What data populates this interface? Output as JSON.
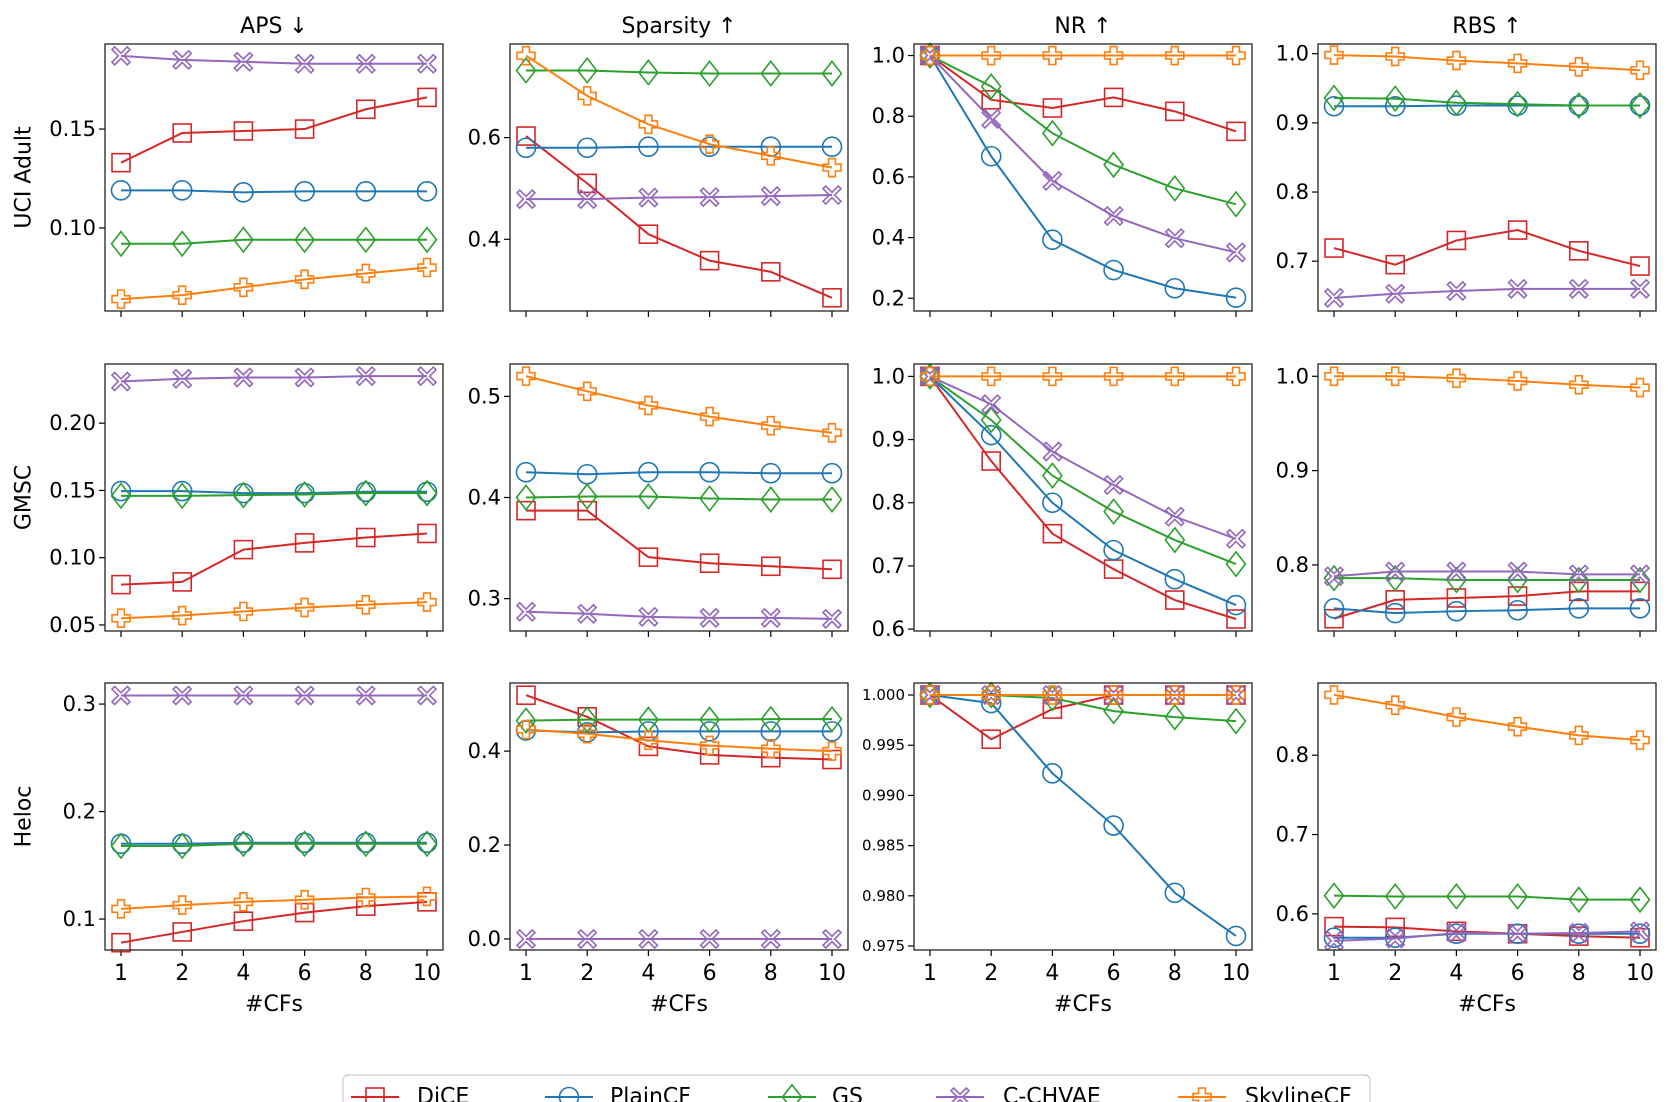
{
  "chart_data": {
    "type": "line",
    "layout": "grid 3 rows x 4 columns",
    "x": [
      "1",
      "2",
      "4",
      "6",
      "8",
      "10"
    ],
    "xlabel": "#CFs",
    "column_titles": [
      "APS ↓",
      "Sparsity ↑",
      "NR ↑",
      "RBS ↑"
    ],
    "row_labels": [
      "UCI Adult",
      "GMSC",
      "Heloc"
    ],
    "legend": {
      "placement": "bottom-center",
      "entries": [
        "DiCE",
        "PlainCF",
        "GS",
        "C-CHVAE",
        "SkylineCF"
      ]
    },
    "series_style": [
      {
        "name": "DiCE",
        "color": "#d62728",
        "marker": "square"
      },
      {
        "name": "PlainCF",
        "color": "#1f77b4",
        "marker": "circle"
      },
      {
        "name": "GS",
        "color": "#2ca02c",
        "marker": "diamond"
      },
      {
        "name": "C-CHVAE",
        "color": "#9467bd",
        "marker": "x"
      },
      {
        "name": "SkylineCF",
        "color": "#ff7f0e",
        "marker": "plus"
      }
    ],
    "grid": false,
    "panels": [
      {
        "row": 0,
        "col": 0,
        "ylim": [
          0.058,
          0.193
        ],
        "yticks": [
          "0.10",
          "0.15"
        ],
        "series": [
          {
            "name": "DiCE",
            "values": [
              0.133,
              0.148,
              0.149,
              0.15,
              0.16,
              0.166
            ]
          },
          {
            "name": "PlainCF",
            "values": [
              0.119,
              0.119,
              0.118,
              0.1185,
              0.1185,
              0.1185
            ]
          },
          {
            "name": "GS",
            "values": [
              0.092,
              0.092,
              0.094,
              0.094,
              0.094,
              0.094
            ]
          },
          {
            "name": "C-CHVAE",
            "values": [
              0.187,
              0.185,
              0.184,
              0.183,
              0.183,
              0.183
            ]
          },
          {
            "name": "SkylineCF",
            "values": [
              0.064,
              0.066,
              0.07,
              0.074,
              0.077,
              0.08
            ]
          }
        ]
      },
      {
        "row": 0,
        "col": 1,
        "ylim": [
          0.259,
          0.784
        ],
        "yticks": [
          "0.4",
          "0.6"
        ],
        "series": [
          {
            "name": "DiCE",
            "values": [
              0.603,
              0.51,
              0.41,
              0.358,
              0.336,
              0.285
            ]
          },
          {
            "name": "PlainCF",
            "values": [
              0.58,
              0.58,
              0.582,
              0.582,
              0.582,
              0.582
            ]
          },
          {
            "name": "GS",
            "values": [
              0.732,
              0.732,
              0.728,
              0.726,
              0.726,
              0.726
            ]
          },
          {
            "name": "C-CHVAE",
            "values": [
              0.479,
              0.479,
              0.482,
              0.483,
              0.485,
              0.487
            ]
          },
          {
            "name": "SkylineCF",
            "values": [
              0.761,
              0.682,
              0.626,
              0.587,
              0.564,
              0.541
            ]
          }
        ]
      },
      {
        "row": 0,
        "col": 2,
        "ylim": [
          0.158,
          1.038
        ],
        "yticks": [
          "0.2",
          "0.4",
          "0.6",
          "0.8",
          "1.0"
        ],
        "series": [
          {
            "name": "DiCE",
            "values": [
              1.0,
              0.854,
              0.827,
              0.862,
              0.816,
              0.75
            ]
          },
          {
            "name": "PlainCF",
            "values": [
              1.0,
              0.668,
              0.393,
              0.293,
              0.233,
              0.202
            ]
          },
          {
            "name": "GS",
            "values": [
              1.0,
              0.898,
              0.744,
              0.64,
              0.562,
              0.51
            ]
          },
          {
            "name": "C-CHVAE",
            "values": [
              1.0,
              0.791,
              0.587,
              0.471,
              0.398,
              0.351
            ]
          },
          {
            "name": "SkylineCF",
            "values": [
              1.0,
              1.0,
              1.0,
              1.0,
              1.0,
              1.0
            ]
          }
        ]
      },
      {
        "row": 0,
        "col": 3,
        "ylim": [
          0.628,
          1.014
        ],
        "yticks": [
          "0.7",
          "0.8",
          "0.9",
          "1.0"
        ],
        "series": [
          {
            "name": "DiCE",
            "values": [
              0.719,
              0.695,
              0.73,
              0.745,
              0.715,
              0.693
            ]
          },
          {
            "name": "PlainCF",
            "values": [
              0.924,
              0.924,
              0.925,
              0.925,
              0.925,
              0.925
            ]
          },
          {
            "name": "GS",
            "values": [
              0.936,
              0.935,
              0.929,
              0.927,
              0.925,
              0.925
            ]
          },
          {
            "name": "C-CHVAE",
            "values": [
              0.647,
              0.653,
              0.657,
              0.66,
              0.66,
              0.66
            ]
          },
          {
            "name": "SkylineCF",
            "values": [
              0.998,
              0.996,
              0.99,
              0.986,
              0.981,
              0.976
            ]
          }
        ]
      },
      {
        "row": 1,
        "col": 0,
        "ylim": [
          0.0455,
          0.244
        ],
        "yticks": [
          "0.05",
          "0.10",
          "0.15",
          "0.20"
        ],
        "series": [
          {
            "name": "DiCE",
            "values": [
              0.08,
              0.082,
              0.106,
              0.111,
              0.115,
              0.118
            ]
          },
          {
            "name": "PlainCF",
            "values": [
              0.1495,
              0.1495,
              0.148,
              0.148,
              0.149,
              0.149
            ]
          },
          {
            "name": "GS",
            "values": [
              0.146,
              0.146,
              0.1465,
              0.147,
              0.148,
              0.148
            ]
          },
          {
            "name": "C-CHVAE",
            "values": [
              0.231,
              0.233,
              0.234,
              0.234,
              0.235,
              0.235
            ]
          },
          {
            "name": "SkylineCF",
            "values": [
              0.055,
              0.057,
              0.06,
              0.063,
              0.065,
              0.067
            ]
          }
        ]
      },
      {
        "row": 1,
        "col": 1,
        "ylim": [
          0.268,
          0.532
        ],
        "yticks": [
          "0.3",
          "0.4",
          "0.5"
        ],
        "series": [
          {
            "name": "DiCE",
            "values": [
              0.387,
              0.387,
              0.341,
              0.335,
              0.332,
              0.329
            ]
          },
          {
            "name": "PlainCF",
            "values": [
              0.425,
              0.423,
              0.425,
              0.425,
              0.424,
              0.424
            ]
          },
          {
            "name": "GS",
            "values": [
              0.4,
              0.401,
              0.401,
              0.399,
              0.398,
              0.398
            ]
          },
          {
            "name": "C-CHVAE",
            "values": [
              0.287,
              0.285,
              0.282,
              0.281,
              0.281,
              0.28
            ]
          },
          {
            "name": "SkylineCF",
            "values": [
              0.52,
              0.505,
              0.491,
              0.48,
              0.471,
              0.464
            ]
          }
        ]
      },
      {
        "row": 1,
        "col": 2,
        "ylim": [
          0.597,
          1.0196
        ],
        "yticks": [
          "0.6",
          "0.7",
          "0.8",
          "0.9",
          "1.0"
        ],
        "series": [
          {
            "name": "DiCE",
            "values": [
              1.0,
              0.866,
              0.751,
              0.695,
              0.646,
              0.616
            ]
          },
          {
            "name": "PlainCF",
            "values": [
              1.0,
              0.907,
              0.8,
              0.725,
              0.679,
              0.638
            ]
          },
          {
            "name": "GS",
            "values": [
              1.0,
              0.931,
              0.843,
              0.786,
              0.741,
              0.703
            ]
          },
          {
            "name": "C-CHVAE",
            "values": [
              1.0,
              0.956,
              0.881,
              0.828,
              0.778,
              0.743
            ]
          },
          {
            "name": "SkylineCF",
            "values": [
              1.0,
              1.0,
              1.0,
              1.0,
              1.0,
              1.0
            ]
          }
        ]
      },
      {
        "row": 1,
        "col": 3,
        "ylim": [
          0.73,
          1.013
        ],
        "yticks": [
          "0.8",
          "0.9",
          "1.0"
        ],
        "series": [
          {
            "name": "DiCE",
            "values": [
              0.743,
              0.763,
              0.765,
              0.767,
              0.772,
              0.772
            ]
          },
          {
            "name": "PlainCF",
            "values": [
              0.754,
              0.749,
              0.751,
              0.752,
              0.754,
              0.754
            ]
          },
          {
            "name": "GS",
            "values": [
              0.786,
              0.786,
              0.784,
              0.784,
              0.784,
              0.784
            ]
          },
          {
            "name": "C-CHVAE",
            "values": [
              0.788,
              0.793,
              0.793,
              0.793,
              0.79,
              0.79
            ]
          },
          {
            "name": "SkylineCF",
            "values": [
              1.0,
              1.0,
              0.998,
              0.995,
              0.991,
              0.988
            ]
          }
        ]
      },
      {
        "row": 2,
        "col": 0,
        "ylim": [
          0.0712,
          0.3196
        ],
        "yticks": [
          "0.1",
          "0.2",
          "0.3"
        ],
        "series": [
          {
            "name": "DiCE",
            "values": [
              0.078,
              0.088,
              0.098,
              0.106,
              0.112,
              0.116
            ]
          },
          {
            "name": "PlainCF",
            "values": [
              0.17,
              0.17,
              0.171,
              0.171,
              0.171,
              0.171
            ]
          },
          {
            "name": "GS",
            "values": [
              0.168,
              0.168,
              0.17,
              0.17,
              0.17,
              0.17
            ]
          },
          {
            "name": "C-CHVAE",
            "values": [
              0.308,
              0.308,
              0.308,
              0.308,
              0.308,
              0.308
            ]
          },
          {
            "name": "SkylineCF",
            "values": [
              0.1095,
              0.113,
              0.116,
              0.118,
              0.12,
              0.121
            ]
          }
        ]
      },
      {
        "row": 2,
        "col": 1,
        "ylim": [
          -0.0235,
          0.545
        ],
        "yticks": [
          "0.0",
          "0.2",
          "0.4"
        ],
        "series": [
          {
            "name": "DiCE",
            "values": [
              0.519,
              0.473,
              0.41,
              0.392,
              0.386,
              0.382
            ]
          },
          {
            "name": "PlainCF",
            "values": [
              0.444,
              0.44,
              0.442,
              0.442,
              0.442,
              0.442
            ]
          },
          {
            "name": "GS",
            "values": [
              0.465,
              0.467,
              0.467,
              0.467,
              0.468,
              0.468
            ]
          },
          {
            "name": "C-CHVAE",
            "values": [
              0.0,
              0.0,
              0.0,
              0.0,
              0.0,
              0.0
            ]
          },
          {
            "name": "SkylineCF",
            "values": [
              0.446,
              0.437,
              0.423,
              0.412,
              0.405,
              0.4
            ]
          }
        ]
      },
      {
        "row": 2,
        "col": 2,
        "ylim": [
          0.9746,
          1.0012
        ],
        "yticks": [
          "0.975",
          "0.980",
          "0.985",
          "0.990",
          "0.995",
          "1.000"
        ],
        "series": [
          {
            "name": "DiCE",
            "values": [
              1.0,
              0.9956,
              0.9986,
              1.0,
              1.0,
              1.0
            ]
          },
          {
            "name": "PlainCF",
            "values": [
              1.0,
              0.9992,
              0.9922,
              0.987,
              0.9803,
              0.976
            ]
          },
          {
            "name": "GS",
            "values": [
              1.0,
              1.0,
              0.9997,
              0.9984,
              0.9978,
              0.9974
            ]
          },
          {
            "name": "C-CHVAE",
            "values": [
              1.0,
              1.0,
              1.0,
              1.0,
              1.0,
              1.0
            ]
          },
          {
            "name": "SkylineCF",
            "values": [
              1.0,
              1.0,
              1.0,
              1.0,
              1.0,
              1.0
            ]
          }
        ]
      },
      {
        "row": 2,
        "col": 3,
        "ylim": [
          0.5545,
          0.891
        ],
        "yticks": [
          "0.6",
          "0.7",
          "0.8"
        ],
        "series": [
          {
            "name": "DiCE",
            "values": [
              0.584,
              0.583,
              0.578,
              0.575,
              0.572,
              0.57
            ]
          },
          {
            "name": "PlainCF",
            "values": [
              0.57,
              0.57,
              0.575,
              0.575,
              0.575,
              0.575
            ]
          },
          {
            "name": "GS",
            "values": [
              0.623,
              0.622,
              0.622,
              0.622,
              0.618,
              0.618
            ]
          },
          {
            "name": "C-CHVAE",
            "values": [
              0.566,
              0.569,
              0.576,
              0.575,
              0.576,
              0.578
            ]
          },
          {
            "name": "SkylineCF",
            "values": [
              0.876,
              0.863,
              0.848,
              0.836,
              0.825,
              0.819
            ]
          }
        ]
      }
    ]
  }
}
